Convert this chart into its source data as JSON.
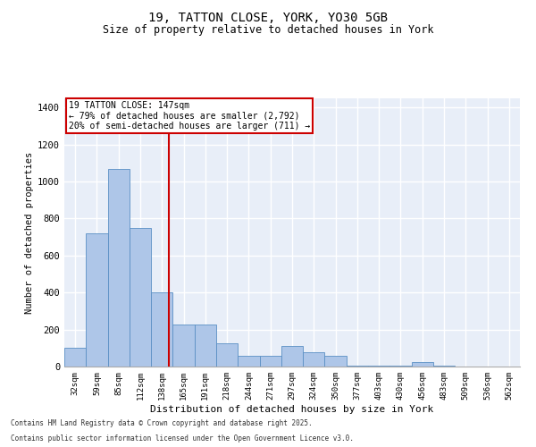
{
  "title_line1": "19, TATTON CLOSE, YORK, YO30 5GB",
  "title_line2": "Size of property relative to detached houses in York",
  "xlabel": "Distribution of detached houses by size in York",
  "ylabel": "Number of detached properties",
  "bar_labels": [
    "32sqm",
    "59sqm",
    "85sqm",
    "112sqm",
    "138sqm",
    "165sqm",
    "191sqm",
    "218sqm",
    "244sqm",
    "271sqm",
    "297sqm",
    "324sqm",
    "350sqm",
    "377sqm",
    "403sqm",
    "430sqm",
    "456sqm",
    "483sqm",
    "509sqm",
    "536sqm",
    "562sqm"
  ],
  "bar_values": [
    100,
    720,
    1070,
    750,
    400,
    225,
    225,
    125,
    60,
    60,
    110,
    75,
    60,
    5,
    5,
    5,
    25,
    3,
    2,
    2,
    2
  ],
  "bar_color": "#aec6e8",
  "bar_edge_color": "#5a8fc4",
  "bg_color": "#e8eef8",
  "grid_color": "#ffffff",
  "vline_color": "#cc0000",
  "annotation_text": "19 TATTON CLOSE: 147sqm\n← 79% of detached houses are smaller (2,792)\n20% of semi-detached houses are larger (711) →",
  "annotation_box_color": "#cc0000",
  "ylim": [
    0,
    1450
  ],
  "yticks": [
    0,
    200,
    400,
    600,
    800,
    1000,
    1200,
    1400
  ],
  "footer_line1": "Contains HM Land Registry data © Crown copyright and database right 2025.",
  "footer_line2": "Contains public sector information licensed under the Open Government Licence v3.0."
}
